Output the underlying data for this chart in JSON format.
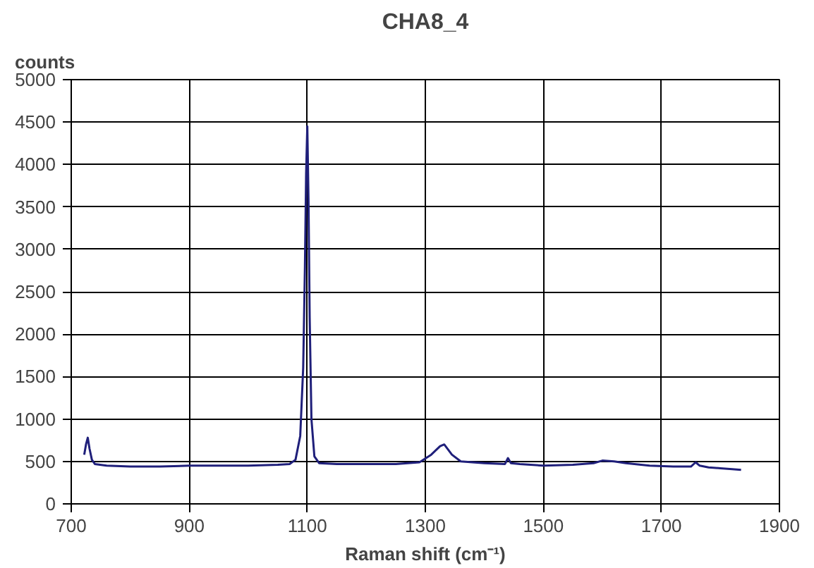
{
  "chart_data": {
    "type": "line",
    "title": "CHA8_4",
    "xlabel": "Raman shift (cm⁻¹)",
    "ylabel": "counts",
    "x": [
      722,
      725,
      728,
      731,
      735,
      740,
      760,
      800,
      850,
      900,
      950,
      1000,
      1050,
      1070,
      1080,
      1088,
      1093,
      1096,
      1098,
      1100,
      1102,
      1104,
      1107,
      1112,
      1120,
      1150,
      1200,
      1250,
      1290,
      1310,
      1325,
      1332,
      1345,
      1360,
      1400,
      1435,
      1440,
      1445,
      1460,
      1500,
      1550,
      1585,
      1600,
      1620,
      1640,
      1680,
      1720,
      1750,
      1758,
      1765,
      1780,
      1800,
      1820,
      1835
    ],
    "series": [
      {
        "color": "#1f1f7a",
        "values": [
          580,
          700,
          780,
          650,
          520,
          470,
          450,
          440,
          440,
          450,
          450,
          450,
          460,
          470,
          520,
          800,
          1600,
          2800,
          3900,
          4450,
          3600,
          2200,
          1000,
          560,
          480,
          470,
          470,
          470,
          490,
          580,
          680,
          700,
          580,
          500,
          480,
          470,
          540,
          480,
          470,
          450,
          460,
          480,
          510,
          500,
          480,
          450,
          440,
          440,
          490,
          450,
          430,
          420,
          410,
          400
        ]
      }
    ],
    "xlim": [
      700,
      1900
    ],
    "ylim": [
      0,
      5000
    ],
    "xticks": [
      700,
      900,
      1100,
      1300,
      1500,
      1700,
      1900
    ],
    "yticks": [
      0,
      500,
      1000,
      1500,
      2000,
      2500,
      3000,
      3500,
      4000,
      4500,
      5000
    ],
    "grid": true,
    "marker": "none",
    "line_style": "solid"
  }
}
